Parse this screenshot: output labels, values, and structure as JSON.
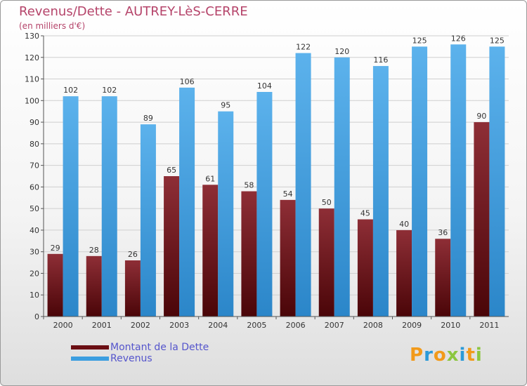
{
  "header": {
    "title": "Revenus/Dette - AUTREY-LèS-CERRE",
    "subtitle": "(en milliers d'€)"
  },
  "chart_data": {
    "type": "bar",
    "title": "Revenus/Dette - AUTREY-LèS-CERRE",
    "ylabel": "(en milliers d'€)",
    "xlabel": "",
    "ylim": [
      0,
      130
    ],
    "yticks": [
      0,
      10,
      20,
      30,
      40,
      50,
      60,
      70,
      80,
      90,
      100,
      110,
      120,
      130
    ],
    "grid": true,
    "categories": [
      "2000",
      "2001",
      "2002",
      "2003",
      "2004",
      "2005",
      "2006",
      "2007",
      "2008",
      "2009",
      "2010",
      "2011"
    ],
    "series": [
      {
        "name": "Montant de la Dette",
        "color": "#7a1f24",
        "values": [
          29,
          28,
          26,
          65,
          61,
          58,
          54,
          50,
          45,
          40,
          36,
          90
        ]
      },
      {
        "name": "Revenus",
        "color": "#3c9ee0",
        "values": [
          102,
          102,
          89,
          106,
          95,
          104,
          122,
          120,
          116,
          125,
          126,
          125
        ]
      }
    ]
  },
  "legend": {
    "items": [
      {
        "label": "Montant de la Dette",
        "color": "#6b0f14"
      },
      {
        "label": "Revenus",
        "color": "#3c9ee0"
      }
    ]
  },
  "brand": {
    "letters": [
      "P",
      "r",
      "o",
      "x",
      "i",
      "t",
      "i"
    ],
    "colors": [
      "#f29a1a",
      "#2b9ad8",
      "#f29a1a",
      "#8cc63f",
      "#2b9ad8",
      "#f29a1a",
      "#8cc63f"
    ]
  }
}
